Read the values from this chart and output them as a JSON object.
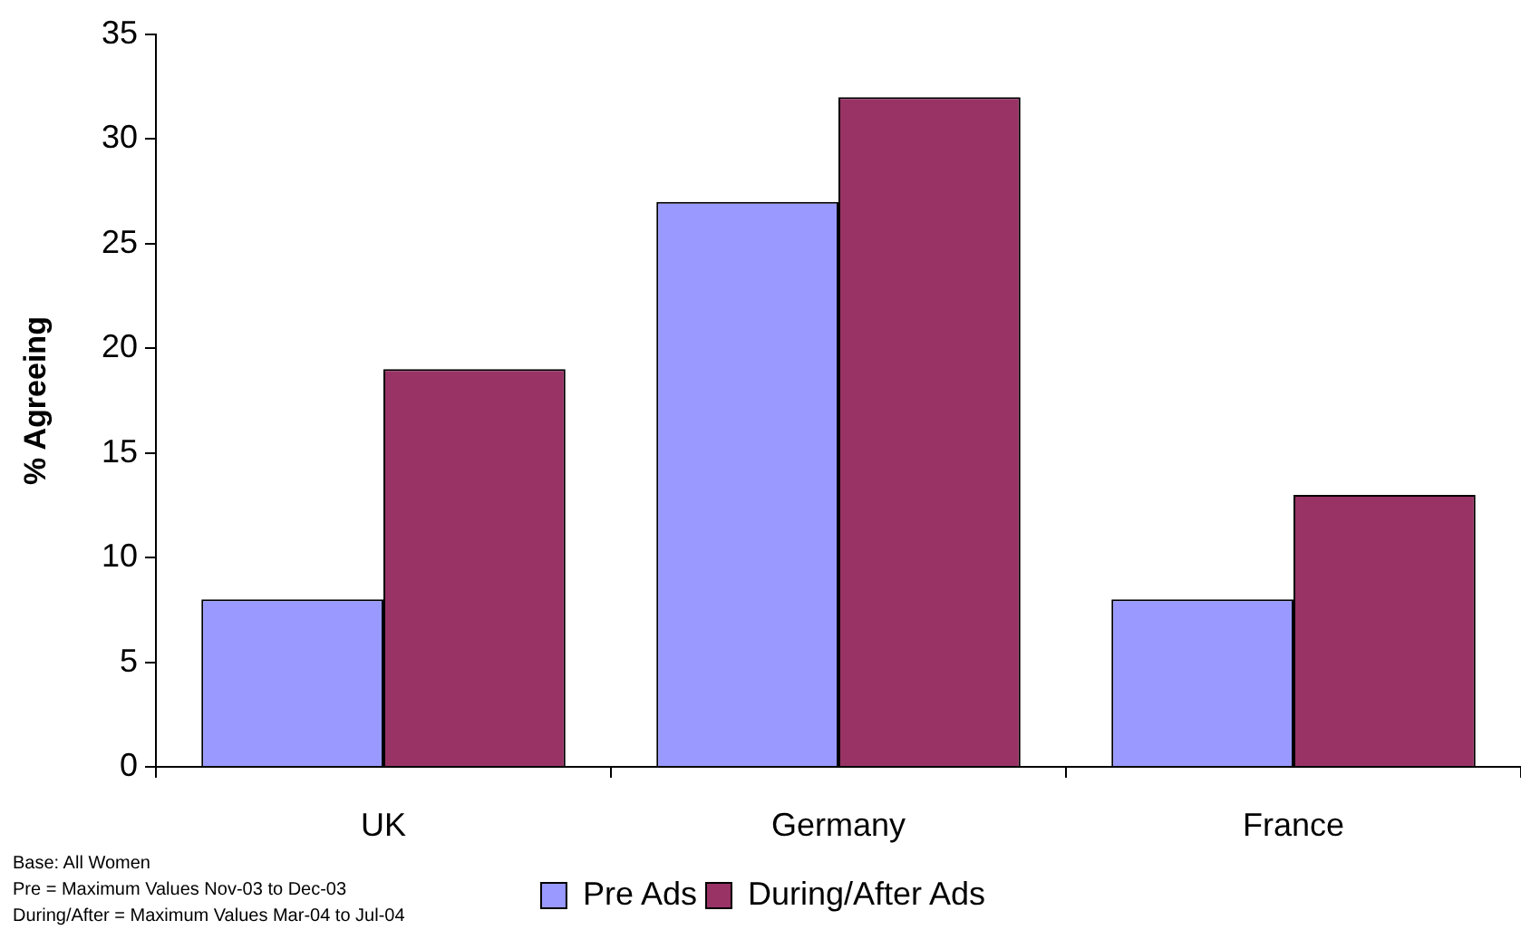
{
  "chart_data": {
    "type": "bar",
    "ylabel": "% Agreeing",
    "categories": [
      "UK",
      "Germany",
      "France"
    ],
    "series": [
      {
        "name": "Pre Ads",
        "color": "#9999ff",
        "values": [
          8,
          27,
          8
        ]
      },
      {
        "name": "During/After Ads",
        "color": "#993366",
        "values": [
          19,
          32,
          13
        ]
      }
    ],
    "ylim": [
      0,
      35
    ],
    "yticks": [
      0,
      5,
      10,
      15,
      20,
      25,
      30,
      35
    ],
    "grid": false,
    "legend": "bottom",
    "annotations": [
      "Base: All Women",
      "Pre = Maximum Values Nov-03 to Dec-03",
      "During/After = Maximum Values Mar-04 to Jul-04"
    ]
  }
}
